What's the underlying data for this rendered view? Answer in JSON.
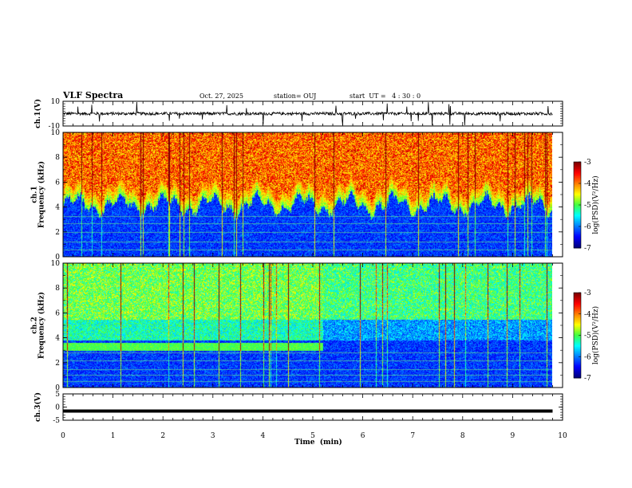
{
  "header": {
    "title": "VLF Spectra",
    "date": "Oct. 27, 2025",
    "station": "station= OUJ",
    "start": "start  UT =   4 : 30 : 0"
  },
  "chart_data": {
    "type": "heatmap",
    "title": "VLF Spectra",
    "xlabel": "Time  (min)",
    "xlim": [
      0,
      10
    ],
    "x_ticks": [
      "0",
      "1",
      "2",
      "3",
      "4",
      "5",
      "6",
      "7",
      "8",
      "9",
      "10"
    ],
    "panels": [
      {
        "name": "ch1-waveform",
        "kind": "line",
        "ylabel": "ch.1(V)",
        "ylim": [
          -10,
          10
        ],
        "y_ticks": [
          "10",
          "-10"
        ],
        "baseline": 0,
        "data_end_min": 9.8
      },
      {
        "name": "ch1-spectrogram",
        "kind": "heatmap",
        "ylabel": "ch.1\nFrequency  (kHz)",
        "ylim": [
          0,
          10
        ],
        "y_ticks": [
          "0",
          "2",
          "4",
          "6",
          "8",
          "10"
        ],
        "data_end_min": 9.8,
        "colorbar": {
          "label": "log(PSD)(V²/Hz)",
          "range": [
            -7,
            -3
          ],
          "ticks": [
            "-3",
            "-4",
            "-5",
            "-6",
            "-7"
          ]
        }
      },
      {
        "name": "ch2-spectrogram",
        "kind": "heatmap",
        "ylabel": "ch.2\nFrequency  (kHz)",
        "ylim": [
          0,
          10
        ],
        "y_ticks": [
          "0",
          "2",
          "4",
          "6",
          "8",
          "10"
        ],
        "data_end_min": 9.8,
        "band_change_min": 5.2,
        "colorbar": {
          "label": "log(PSD)(V²/Hz)",
          "range": [
            -7,
            -3
          ],
          "ticks": [
            "-3",
            "-4",
            "-5",
            "-6",
            "-7"
          ]
        }
      },
      {
        "name": "ch3-waveform",
        "kind": "line",
        "ylabel": "ch.3(V)",
        "ylim": [
          -5,
          5
        ],
        "y_ticks": [
          "5",
          "0",
          "-5"
        ],
        "baseline": -1.5,
        "data_end_min": 9.8
      }
    ]
  },
  "colors": {
    "scale": [
      "#00007f",
      "#0000ff",
      "#0080ff",
      "#00ffff",
      "#40ff40",
      "#ffff00",
      "#ff8000",
      "#ff0000",
      "#800000"
    ]
  }
}
